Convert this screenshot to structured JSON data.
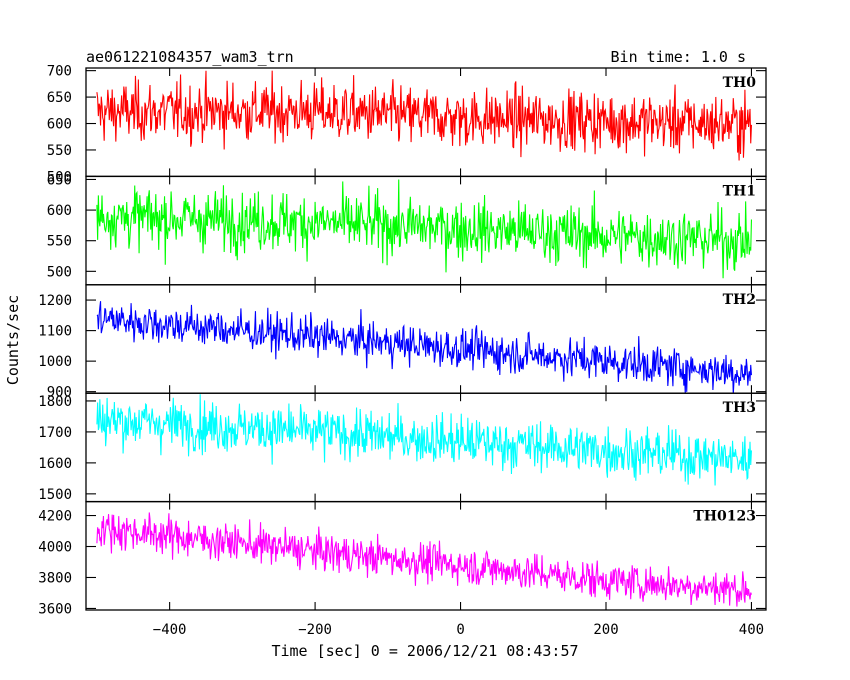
{
  "header": {
    "left_title": "ae061221084357_wam3_trn",
    "right_title": "Bin time: 1.0 s"
  },
  "chart_data": {
    "type": "line",
    "title": "ae061221084357_wam3_trn",
    "bin_time": "Bin time: 1.0 s",
    "xlabel": "Time [sec] 0 = 2006/12/21 08:43:57",
    "ylabel": "Counts/sec",
    "xlim": [
      -515,
      420
    ],
    "x_ticks": [
      -400,
      -200,
      0,
      200,
      400
    ],
    "x_tick_labels": [
      "−400",
      "−200",
      "0",
      "200",
      "400"
    ],
    "x_range": [
      -500,
      400
    ],
    "bin_seconds": 1.0,
    "grid": false,
    "panels": [
      {
        "label": "TH0",
        "color": "#ff0000",
        "ylim": [
          500,
          705
        ],
        "y_ticks": [
          500,
          550,
          600,
          650,
          700
        ],
        "y_tick_labels": [
          "500",
          "550",
          "600",
          "650",
          "700"
        ],
        "trend": [
          [
            -500,
            622
          ],
          [
            -200,
            623
          ],
          [
            0,
            610
          ],
          [
            200,
            605
          ],
          [
            400,
            598
          ]
        ],
        "noise_sigma": 28
      },
      {
        "label": "TH1",
        "color": "#00ff00",
        "ylim": [
          478,
          655
        ],
        "y_ticks": [
          500,
          550,
          600,
          650
        ],
        "y_tick_labels": [
          "500",
          "550",
          "600",
          "650"
        ],
        "trend": [
          [
            -500,
            590
          ],
          [
            -200,
            580
          ],
          [
            0,
            570
          ],
          [
            200,
            558
          ],
          [
            400,
            550
          ]
        ],
        "noise_sigma": 24
      },
      {
        "label": "TH2",
        "color": "#0000ff",
        "ylim": [
          895,
          1250
        ],
        "y_ticks": [
          900,
          1000,
          1100,
          1200
        ],
        "y_tick_labels": [
          "900",
          "1000",
          "1100",
          "1200"
        ],
        "trend": [
          [
            -500,
            1140
          ],
          [
            -200,
            1080
          ],
          [
            0,
            1040
          ],
          [
            200,
            1000
          ],
          [
            400,
            960
          ]
        ],
        "noise_sigma": 32
      },
      {
        "label": "TH3",
        "color": "#00ffff",
        "ylim": [
          1475,
          1825
        ],
        "y_ticks": [
          1500,
          1600,
          1700,
          1800
        ],
        "y_tick_labels": [
          "1500",
          "1600",
          "1700",
          "1800"
        ],
        "trend": [
          [
            -500,
            1740
          ],
          [
            -200,
            1700
          ],
          [
            0,
            1670
          ],
          [
            200,
            1640
          ],
          [
            400,
            1610
          ]
        ],
        "noise_sigma": 40
      },
      {
        "label": "TH0123",
        "color": "#ff00ff",
        "ylim": [
          3590,
          4290
        ],
        "y_ticks": [
          3600,
          3800,
          4000,
          4200
        ],
        "y_tick_labels": [
          "3600",
          "3800",
          "4000",
          "4200"
        ],
        "trend": [
          [
            -500,
            4120
          ],
          [
            -200,
            3970
          ],
          [
            0,
            3880
          ],
          [
            200,
            3780
          ],
          [
            400,
            3720
          ]
        ],
        "noise_sigma": 60
      }
    ]
  }
}
